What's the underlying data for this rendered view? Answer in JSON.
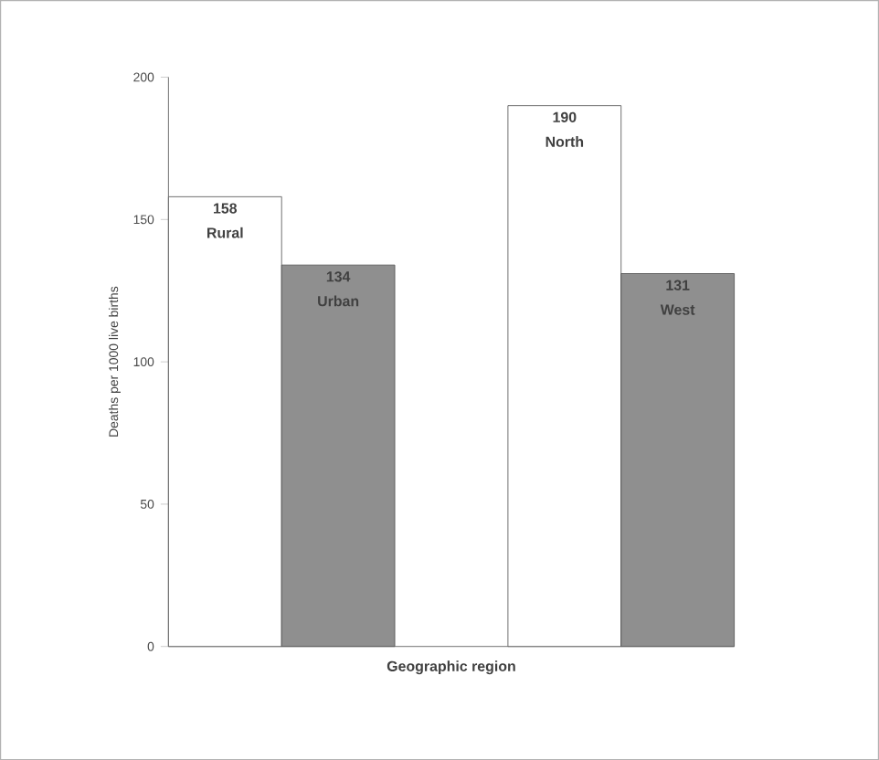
{
  "chart_data": {
    "type": "bar",
    "xlabel": "Geographic region",
    "ylabel": "Deaths per 1000 live births",
    "categories": [
      "Rural",
      "Urban",
      "North",
      "West"
    ],
    "values": [
      158,
      134,
      190,
      131
    ],
    "colors": [
      "#ffffff",
      "#8f8f8f",
      "#ffffff",
      "#8f8f8f"
    ],
    "ylim": [
      0,
      200
    ],
    "yticks": [
      0,
      50,
      100,
      150,
      200
    ],
    "data_labels": true
  }
}
